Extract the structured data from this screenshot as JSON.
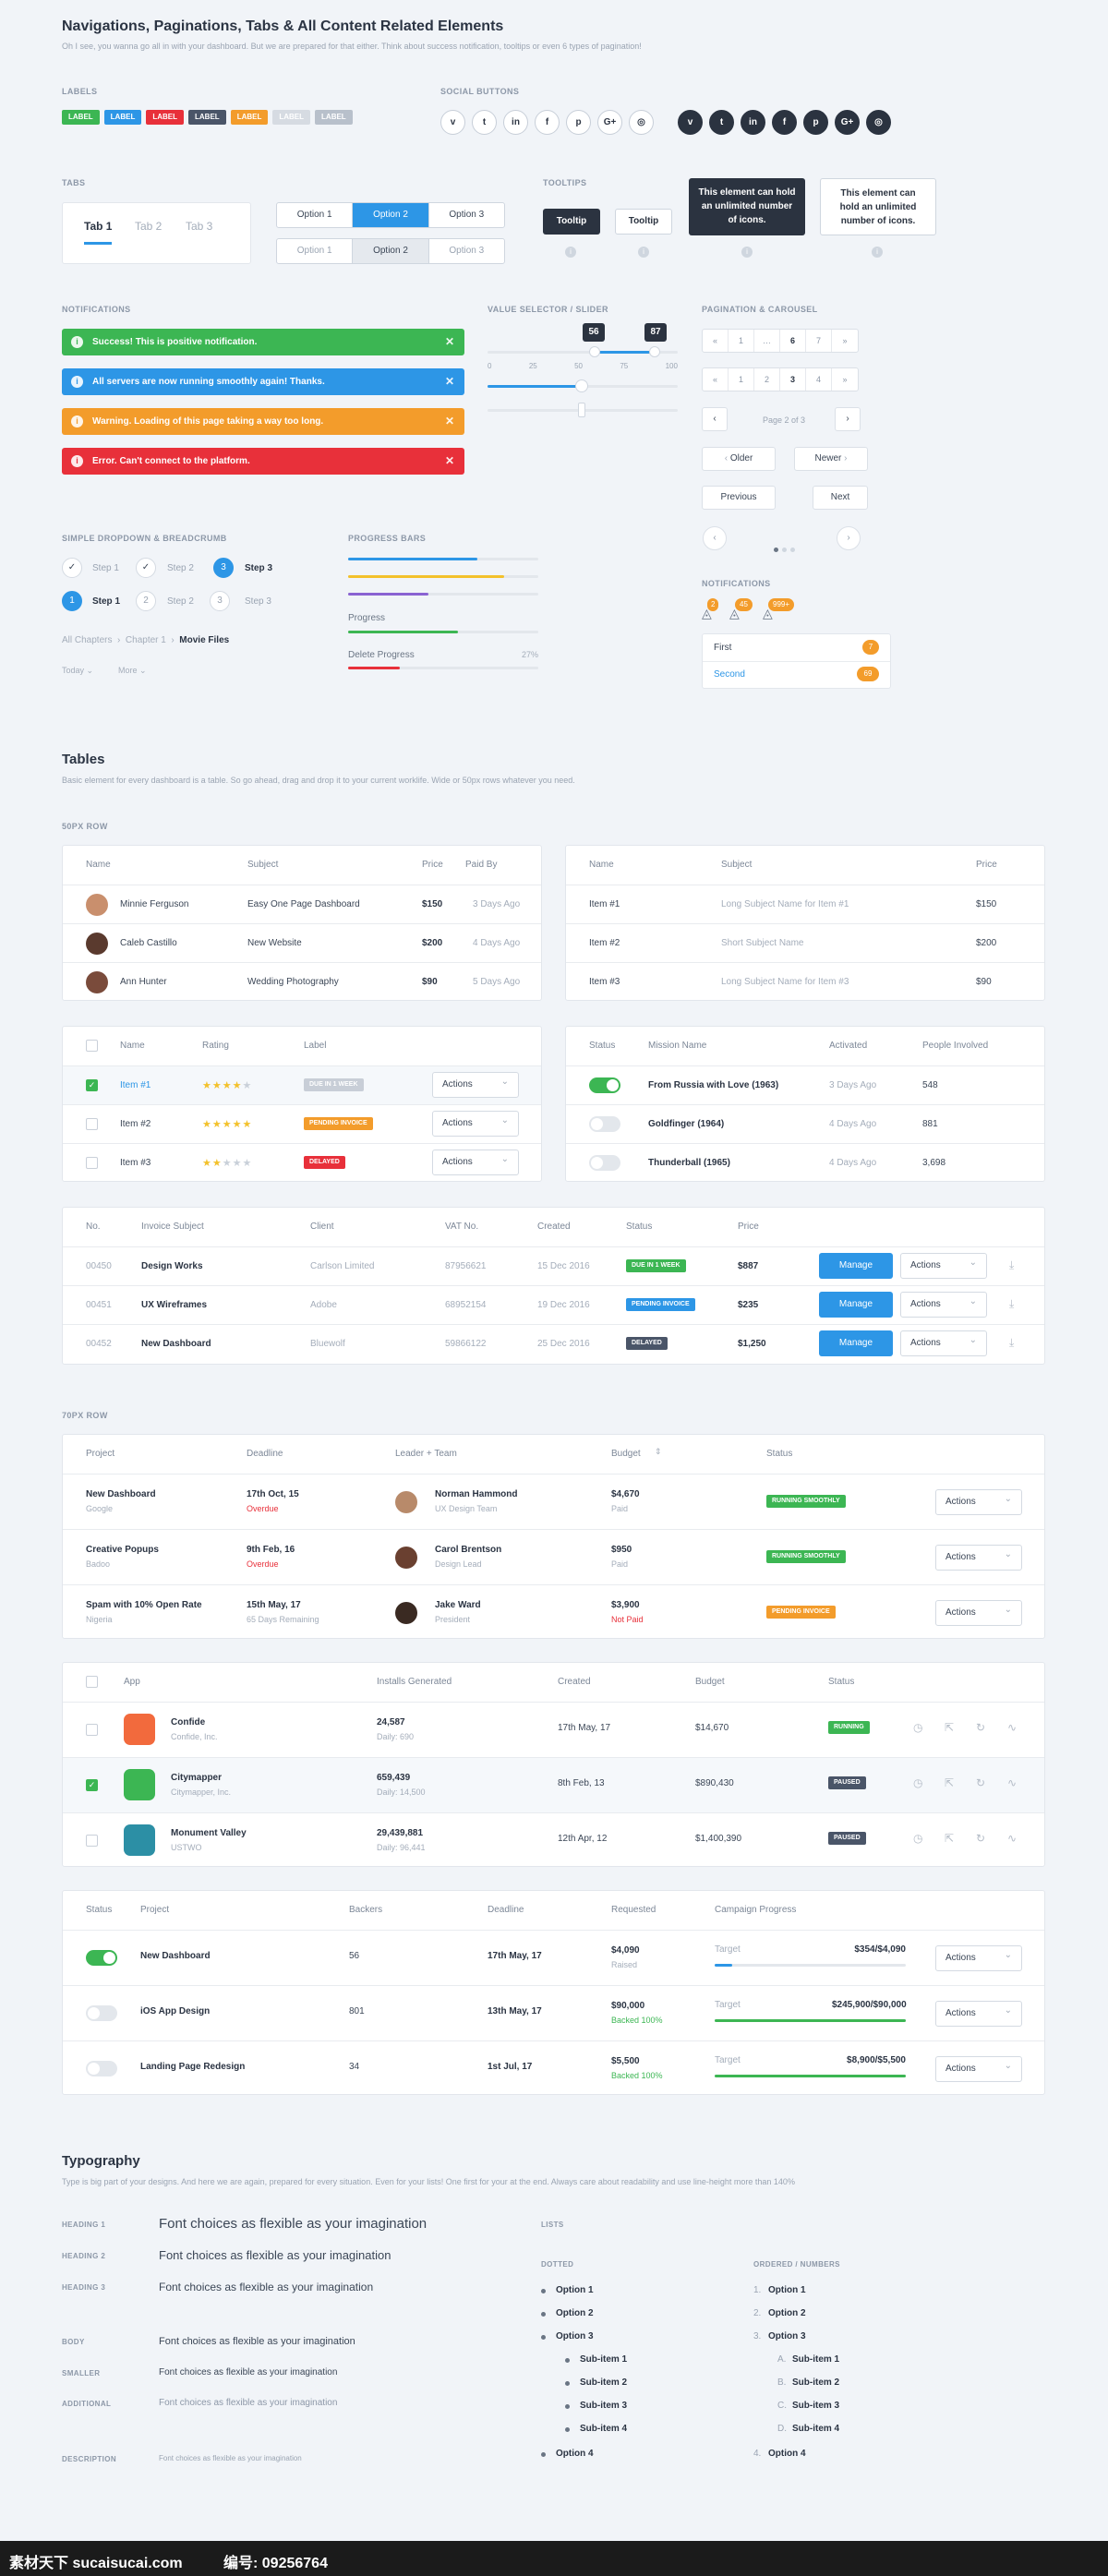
{
  "header": {
    "title": "Navigations, Paginations, Tabs & All Content Related Elements",
    "subtitle": "Oh I see, you wanna go all in with your dashboard. But we are prepared for that either. Think about success notification, tooltips or even 6 types of pagination!"
  },
  "labels": {
    "heading": "LABELS",
    "items": [
      {
        "text": "LABEL",
        "color": "#3cb653"
      },
      {
        "text": "LABEL",
        "color": "#2d96e6"
      },
      {
        "text": "LABEL",
        "color": "#e8303a"
      },
      {
        "text": "LABEL",
        "color": "#4a5568"
      },
      {
        "text": "LABEL",
        "color": "#f39c2b"
      },
      {
        "text": "LABEL",
        "color": "#d6dbe2"
      },
      {
        "text": "LABEL",
        "color": "#b8c0cb"
      }
    ]
  },
  "social": {
    "heading": "SOCIAL BUTTONS",
    "items": [
      "v",
      "t",
      "in",
      "f",
      "p",
      "G+",
      "◎"
    ]
  },
  "tabs": {
    "heading": "TABS",
    "items": [
      "Tab 1",
      "Tab 2",
      "Tab 3"
    ]
  },
  "segmented": {
    "row1": [
      "Option 1",
      "Option 2",
      "Option 3"
    ],
    "row2": [
      "Option 1",
      "Option 2",
      "Option 3"
    ]
  },
  "tooltips": {
    "heading": "TOOLTIPS",
    "t1": "Tooltip",
    "t2": "Tooltip",
    "t3": "This element can hold an unlimited number of icons.",
    "t4": "This element can hold an unlimited number of icons."
  },
  "notifications": {
    "heading": "NOTIFICATIONS",
    "items": [
      {
        "text": "Success! This is positive notification.",
        "color": "#3cb653"
      },
      {
        "text": "All servers are now running smoothly again! Thanks.",
        "color": "#2d96e6"
      },
      {
        "text": "Warning. Loading of this page taking a way too long.",
        "color": "#f39c2b"
      },
      {
        "text": "Error. Can't connect to the platform.",
        "color": "#e8303a"
      }
    ]
  },
  "slider": {
    "heading": "VALUE SELECTOR / SLIDER",
    "v1": "56",
    "v2": "87",
    "ticks": [
      "0",
      "25",
      "50",
      "75",
      "100"
    ]
  },
  "pagination": {
    "heading": "PAGINATION & CAROUSEL",
    "p1": [
      "«",
      "1",
      "…",
      "6",
      "7",
      "»"
    ],
    "p2": [
      "«",
      "1",
      "2",
      "3",
      "4",
      "»"
    ],
    "page_of": "Page 2 of 3",
    "older": "Older",
    "newer": "Newer",
    "previous": "Previous",
    "next": "Next"
  },
  "dropdown": {
    "heading": "SIMPLE DROPDOWN & BREADCRUMB",
    "steps1": [
      "Step 1",
      "Step 2",
      "Step 3"
    ],
    "steps2": [
      "Step 1",
      "Step 2",
      "Step 3"
    ],
    "nums": [
      "1",
      "2",
      "3",
      "3"
    ],
    "crumbs": [
      "All Chapters",
      "Chapter 1",
      "Movie Files"
    ],
    "d1": "Today",
    "d2": "More"
  },
  "progress": {
    "heading": "PROGRESS BARS",
    "bars": [
      {
        "pct": 0.68,
        "color": "#2d96e6"
      },
      {
        "pct": 0.82,
        "color": "#f3c12b"
      },
      {
        "pct": 0.42,
        "color": "#8a63d2"
      }
    ],
    "l1": "Progress",
    "p1": 0.58,
    "l2": "Delete Progress",
    "l2v": "27%",
    "p2": 0.27
  },
  "notif2": {
    "heading": "NOTIFICATIONS",
    "c1": "2",
    "c2": "45",
    "c3": "999+",
    "first": "First",
    "second": "Second",
    "b1": "7",
    "b2": "69"
  },
  "tables": {
    "title": "Tables",
    "subtitle": "Basic element for every dashboard is a table. So go ahead, drag and drop it to your current worklife. Wide or 50px rows whatever you need.",
    "row50": "50PX ROW",
    "row70": "70PX ROW"
  },
  "t1": {
    "cols": [
      "Name",
      "Subject",
      "Price",
      "Paid By"
    ],
    "rows": [
      [
        "Minnie Ferguson",
        "Easy One Page Dashboard",
        "$150",
        "3 Days Ago"
      ],
      [
        "Caleb Castillo",
        "New Website",
        "$200",
        "4 Days Ago"
      ],
      [
        "Ann Hunter",
        "Wedding Photography",
        "$90",
        "5 Days Ago"
      ]
    ]
  },
  "t2": {
    "cols": [
      "Name",
      "Subject",
      "Price"
    ],
    "rows": [
      [
        "Item #1",
        "Long Subject Name for Item #1",
        "$150"
      ],
      [
        "Item #2",
        "Short Subject Name",
        "$200"
      ],
      [
        "Item #3",
        "Long Subject Name for Item #3",
        "$90"
      ]
    ]
  },
  "t3": {
    "cols": [
      "Name",
      "Rating",
      "Label"
    ],
    "rows": [
      [
        "Item #1",
        "★★★★★",
        "DUE IN 1 WEEK",
        "#c8ced7",
        "Actions"
      ],
      [
        "Item #2",
        "★★★★★",
        "PENDING INVOICE",
        "#f39c2b",
        "Actions"
      ],
      [
        "Item #3",
        "★★★★★",
        "DELAYED",
        "#e8303a",
        "Actions"
      ]
    ]
  },
  "t4": {
    "cols": [
      "Status",
      "Mission Name",
      "Activated",
      "People Involved"
    ],
    "rows": [
      [
        "From Russia with Love (1963)",
        "3 Days Ago",
        "548"
      ],
      [
        "Goldfinger (1964)",
        "4 Days Ago",
        "881"
      ],
      [
        "Thunderball (1965)",
        "4 Days Ago",
        "3,698"
      ]
    ]
  },
  "t5": {
    "cols": [
      "No.",
      "Invoice Subject",
      "Client",
      "VAT No.",
      "Created",
      "Status",
      "Price"
    ],
    "rows": [
      [
        "00450",
        "Design Works",
        "Carlson Limited",
        "87956621",
        "15 Dec 2016",
        "DUE IN 1 WEEK",
        "#3cb653",
        "$887"
      ],
      [
        "00451",
        "UX Wireframes",
        "Adobe",
        "68952154",
        "19 Dec 2016",
        "PENDING INVOICE",
        "#2d96e6",
        "$235"
      ],
      [
        "00452",
        "New Dashboard",
        "Bluewolf",
        "59866122",
        "25 Dec 2016",
        "DELAYED",
        "#4a5568",
        "$1,250"
      ]
    ],
    "manage": "Manage",
    "actions": "Actions"
  },
  "t6": {
    "cols": [
      "Project",
      "Deadline",
      "Leader + Team",
      "Budget",
      "Status"
    ],
    "rows": [
      [
        "New Dashboard",
        "Google",
        "17th Oct, 15",
        "Overdue",
        "Norman Hammond",
        "UX Design Team",
        "$4,670",
        "Paid",
        "RUNNING SMOOTHLY",
        "#3cb653"
      ],
      [
        "Creative Popups",
        "Badoo",
        "9th Feb, 16",
        "Overdue",
        "Carol Brentson",
        "Design Lead",
        "$950",
        "Paid",
        "RUNNING SMOOTHLY",
        "#3cb653"
      ],
      [
        "Spam with 10% Open Rate",
        "Nigeria",
        "15th May, 17",
        "65 Days Remaining",
        "Jake Ward",
        "President",
        "$3,900",
        "Not Paid",
        "PENDING INVOICE",
        "#f39c2b"
      ]
    ],
    "actions": "Actions"
  },
  "t7": {
    "cols": [
      "App",
      "Installs Generated",
      "Created",
      "Budget",
      "Status"
    ],
    "rows": [
      [
        "Confide",
        "Confide, Inc.",
        "24,587",
        "Daily: 690",
        "17th May, 17",
        "$14,670",
        "RUNNING",
        "#3cb653"
      ],
      [
        "Citymapper",
        "Citymapper, Inc.",
        "659,439",
        "Daily: 14,500",
        "8th Feb, 13",
        "$890,430",
        "PAUSED",
        "#4a5568"
      ],
      [
        "Monument Valley",
        "USTWO",
        "29,439,881",
        "Daily: 96,441",
        "12th Apr, 12",
        "$1,400,390",
        "PAUSED",
        "#4a5568"
      ]
    ]
  },
  "t8": {
    "cols": [
      "Status",
      "Project",
      "Backers",
      "Deadline",
      "Requested",
      "Campaign Progress"
    ],
    "rows": [
      [
        "New Dashboard",
        "56",
        "17th May, 17",
        "$4,090",
        "Raised",
        "Target",
        "$354/$4,090"
      ],
      [
        "iOS App Design",
        "801",
        "13th May, 17",
        "$90,000",
        "Backed 100%",
        "Target",
        "$245,900/$90,000"
      ],
      [
        "Landing Page Redesign",
        "34",
        "1st Jul, 17",
        "$5,500",
        "Backed 100%",
        "Target",
        "$8,900/$5,500"
      ]
    ],
    "actions": "Actions",
    "fills": [
      0.09,
      1,
      1
    ],
    "fcolors": [
      "#2d96e6",
      "#3cb653",
      "#3cb653"
    ]
  },
  "typo": {
    "title": "Typography",
    "subtitle": "Type is big part of your designs. And here we are again, prepared for every situation. Even for your lists! One first for your at the end. Always care about readability and use line-height more than 140%",
    "h1": "HEADING 1",
    "h2": "HEADING 2",
    "h3": "HEADING 3",
    "body": "BODY",
    "smaller": "SMALLER",
    "additional": "ADDITIONAL",
    "description": "DESCRIPTION",
    "sample": "Font choices as flexible as your imagination",
    "lists": "LISTS",
    "dotted": "DOTTED",
    "ordered": "ORDERED / NUMBERS",
    "ditems": [
      "Option 1",
      "Option 2",
      "Option 3",
      "Sub-item 1",
      "Sub-item 2",
      "Sub-item 3",
      "Sub-item 4",
      "Option 4"
    ],
    "onum": [
      "1.",
      "2.",
      "3.",
      "A.",
      "B.",
      "C.",
      "D.",
      "4."
    ]
  },
  "footer": {
    "wm1": "素材天下 sucaisucai.com",
    "wm2": "编号: 09256764"
  }
}
